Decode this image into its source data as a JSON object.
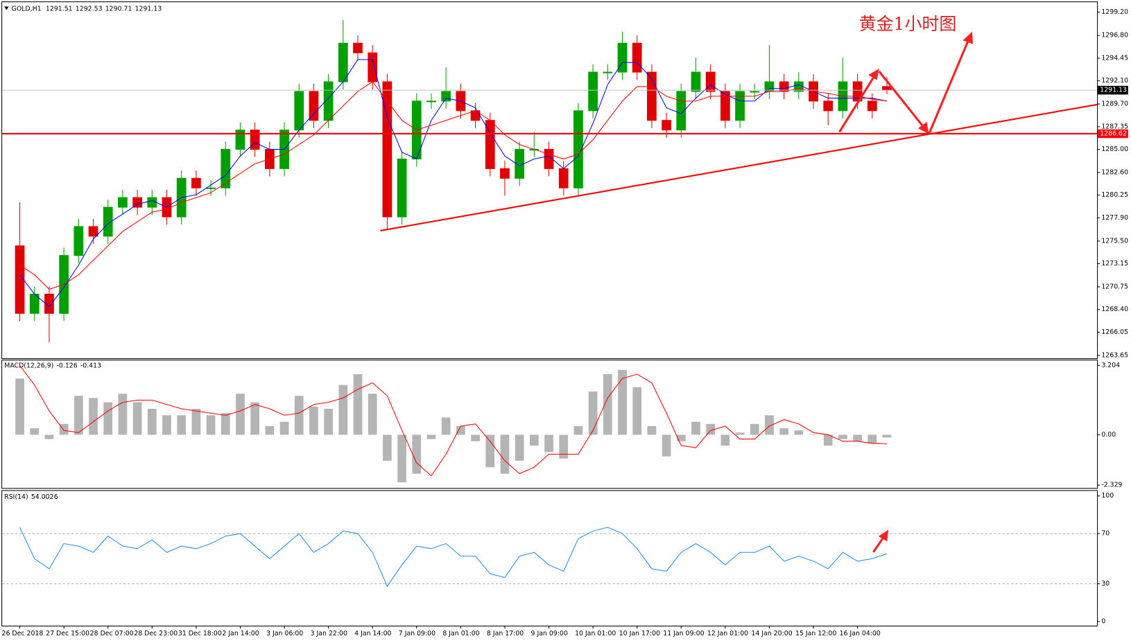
{
  "chart_data": [
    {
      "type": "candlestick",
      "title": "黄金1小时图",
      "symbol": "GOLD,H1",
      "up_color": "#00a000",
      "down_color": "#e00000",
      "open": [
        1275,
        1268,
        1270,
        1268,
        1274,
        1277,
        1276,
        1279,
        1280,
        1279,
        1280,
        1278,
        1282,
        1281,
        1281,
        1285,
        1287,
        1285,
        1283,
        1287,
        1291,
        1288,
        1292,
        1296,
        1295,
        1292,
        1278,
        1284,
        1290,
        1290,
        1291,
        1289,
        1288,
        1283,
        1282,
        1285,
        1285,
        1283,
        1281,
        1289,
        1293,
        1293,
        1296,
        1293,
        1288,
        1287,
        1291,
        1293,
        1291,
        1288,
        1291,
        1291,
        1292,
        1291,
        1292,
        1290,
        1289,
        1292,
        1290,
        1291.51
      ],
      "high": [
        1279.5,
        1270.8,
        1270.8,
        1274.8,
        1277.8,
        1277.8,
        1279.8,
        1280.8,
        1280.8,
        1280.8,
        1280.8,
        1282.8,
        1282.8,
        1281.8,
        1285.8,
        1287.8,
        1287.8,
        1285.8,
        1287.8,
        1291.8,
        1291.8,
        1292.8,
        1298.4,
        1296.8,
        1295.8,
        1292.8,
        1284.8,
        1290.8,
        1290.8,
        1293.5,
        1291.8,
        1289.8,
        1288.8,
        1283.8,
        1285.8,
        1286.8,
        1285.8,
        1283.8,
        1289.8,
        1293.8,
        1293.8,
        1297.2,
        1296.8,
        1293.8,
        1288.8,
        1291.8,
        1294.5,
        1293.8,
        1291.8,
        1291.8,
        1291.8,
        1295.8,
        1292.8,
        1293,
        1292.8,
        1290.8,
        1294.5,
        1292.8,
        1290.8,
        1292.53
      ],
      "low": [
        1267.2,
        1267.2,
        1265,
        1267.2,
        1273.2,
        1275.2,
        1275.2,
        1278.2,
        1278.2,
        1278.2,
        1277.2,
        1277.2,
        1280.2,
        1280.2,
        1280.2,
        1284.2,
        1284.2,
        1282.2,
        1282.2,
        1286.2,
        1287.2,
        1287.2,
        1291.2,
        1294.2,
        1291.2,
        1276.6,
        1277.2,
        1283.2,
        1289.2,
        1289.2,
        1288.2,
        1287.2,
        1282.2,
        1280.2,
        1281.2,
        1284.2,
        1282.2,
        1280.2,
        1280.2,
        1288.2,
        1292.2,
        1292.2,
        1292.2,
        1287.2,
        1286.2,
        1286.2,
        1290.2,
        1290.2,
        1287.2,
        1287.2,
        1290.2,
        1290.2,
        1290.2,
        1290.2,
        1289.2,
        1287.5,
        1288.2,
        1289.2,
        1288.2,
        1290.71
      ],
      "close": [
        1268,
        1270,
        1268,
        1274,
        1277,
        1276,
        1279,
        1280,
        1279,
        1280,
        1278,
        1282,
        1281,
        1281,
        1285,
        1287,
        1285,
        1283,
        1287,
        1291,
        1288,
        1292,
        1296,
        1295,
        1292,
        1278,
        1284,
        1290,
        1290,
        1291,
        1289,
        1288,
        1283,
        1282,
        1285,
        1285,
        1283,
        1281,
        1289,
        1293,
        1293,
        1296,
        1293,
        1288,
        1287,
        1291,
        1293,
        1291,
        1288,
        1291,
        1291,
        1292,
        1291,
        1292,
        1290,
        1289,
        1292,
        1290,
        1289,
        1291.13
      ],
      "series": [
        {
          "color": "#0000ff",
          "values": [
            1272,
            1270,
            1268.7,
            1270.7,
            1273,
            1275.7,
            1277.3,
            1278.3,
            1279.3,
            1279.7,
            1279,
            1280,
            1280.3,
            1281.3,
            1282.3,
            1284.3,
            1285.7,
            1285,
            1285,
            1287,
            1288.7,
            1290.3,
            1292,
            1294.3,
            1294.3,
            1288.3,
            1284.7,
            1284,
            1288,
            1290.3,
            1290,
            1289.3,
            1286.7,
            1284.3,
            1283.3,
            1284,
            1284.3,
            1283,
            1284.3,
            1287.7,
            1291.7,
            1294,
            1294,
            1292.3,
            1289.3,
            1288.7,
            1290.3,
            1291.7,
            1290.7,
            1290,
            1290,
            1291.3,
            1291.3,
            1291.7,
            1291,
            1290.3,
            1290.3,
            1290.3,
            1290.3,
            1290
          ]
        },
        {
          "color": "#ff0000",
          "values": [
            1273,
            1272,
            1270.5,
            1271,
            1272,
            1273.5,
            1275,
            1276.5,
            1277.5,
            1278.5,
            1278.8,
            1279.5,
            1280,
            1280.5,
            1281.5,
            1282.5,
            1283.5,
            1284,
            1284.5,
            1285.5,
            1286.5,
            1288,
            1289.5,
            1291,
            1292,
            1290,
            1288,
            1287,
            1287.5,
            1288,
            1288.5,
            1289,
            1288,
            1286.5,
            1285.5,
            1285,
            1284.5,
            1284,
            1284.5,
            1286,
            1288,
            1290,
            1291.5,
            1291.5,
            1290.5,
            1290,
            1290,
            1290.5,
            1290.5,
            1290.5,
            1290.5,
            1291,
            1291,
            1291.3,
            1291,
            1290.8,
            1290.5,
            1290.5,
            1290.2,
            1290
          ]
        }
      ],
      "hline": {
        "value": 1286.62,
        "color": "#ff0000"
      },
      "xlim": [
        -1.2,
        73.3
      ],
      "xticks": [
        {
          "value": 0,
          "label": "26 Dec 2018"
        },
        {
          "value": 3,
          "label": "27 Dec 15:00"
        },
        {
          "value": 6,
          "label": "28 Dec 07:00"
        },
        {
          "value": 9,
          "label": "28 Dec 23:00"
        },
        {
          "value": 12,
          "label": "31 Dec 18:00"
        },
        {
          "value": 15,
          "label": "2 Jan 14:00"
        },
        {
          "value": 18,
          "label": "3 Jan 06:00"
        },
        {
          "value": 21,
          "label": "3 Jan 22:00"
        },
        {
          "value": 24,
          "label": "4 Jan 14:00"
        },
        {
          "value": 27,
          "label": "7 Jan 09:00"
        },
        {
          "value": 30,
          "label": "8 Jan 01:00"
        },
        {
          "value": 33,
          "label": "8 Jan 17:00"
        },
        {
          "value": 36,
          "label": "9 Jan 09:00"
        },
        {
          "value": 39,
          "label": "10 Jan 01:00"
        },
        {
          "value": 42,
          "label": "10 Jan 17:00"
        },
        {
          "value": 45,
          "label": "11 Jan 09:00"
        },
        {
          "value": 48,
          "label": "12 Jan 01:00"
        },
        {
          "value": 51,
          "label": "14 Jan 20:00"
        },
        {
          "value": 54,
          "label": "15 Jan 12:00"
        },
        {
          "value": 57,
          "label": "16 Jan 04:00"
        }
      ],
      "ylim": [
        1263.35,
        1300.25
      ],
      "yticks": [
        {
          "value": 1299.2,
          "label": "1299.20"
        },
        {
          "value": 1296.8,
          "label": "1296.80"
        },
        {
          "value": 1294.45,
          "label": "1294.45"
        },
        {
          "value": 1292.1,
          "label": "1292.10"
        },
        {
          "value": 1289.7,
          "label": "1289.70"
        },
        {
          "value": 1287.35,
          "label": "1287.35"
        },
        {
          "value": 1285,
          "label": "1285.00"
        },
        {
          "value": 1282.6,
          "label": "1282.60"
        },
        {
          "value": 1280.25,
          "label": "1280.25"
        },
        {
          "value": 1277.9,
          "label": "1277.90"
        },
        {
          "value": 1275.5,
          "label": "1275.50"
        },
        {
          "value": 1273.15,
          "label": "1273.15"
        },
        {
          "value": 1270.75,
          "label": "1270.75"
        },
        {
          "value": 1268.4,
          "label": "1268.40"
        },
        {
          "value": 1266.05,
          "label": "1266.05"
        },
        {
          "value": 1263.65,
          "label": "1263.65"
        }
      ]
    },
    {
      "type": "macd",
      "title": "MACD(12,26,9)",
      "series": [
        {
          "style": "histogram",
          "color": "#b4b4b4",
          "values": [
            2.6,
            0.3,
            -0.2,
            0.5,
            1.8,
            1.7,
            1.5,
            1.9,
            1.5,
            1.2,
            0.9,
            0.9,
            1.2,
            0.9,
            1,
            1.9,
            1.5,
            0.4,
            0.6,
            1.8,
            1.3,
            1.2,
            2.3,
            2.8,
            1.9,
            -1.2,
            -2.2,
            -1.8,
            -0.2,
            0.8,
            0.4,
            -0.3,
            -1.5,
            -1.8,
            -1.2,
            -0.5,
            -0.8,
            -1.1,
            0.4,
            2,
            2.8,
            3,
            2.2,
            0.4,
            -1,
            -0.3,
            0.6,
            0.5,
            -0.5,
            0.1,
            0.5,
            0.9,
            0.3,
            0.2,
            0,
            -0.5,
            -0.2,
            -0.3,
            -0.4,
            -0.126
          ]
        },
        {
          "style": "line",
          "color": "#ff0000",
          "values": [
            3.2,
            2.3,
            1.1,
            0.2,
            0.1,
            0.6,
            1.1,
            1.5,
            1.6,
            1.6,
            1.4,
            1.2,
            1.1,
            1,
            0.9,
            1.1,
            1.4,
            1.2,
            0.9,
            1,
            1.4,
            1.5,
            1.7,
            2.1,
            2.4,
            1.8,
            0.2,
            -1.3,
            -1.9,
            -0.9,
            0.4,
            0.5,
            -0.3,
            -1.2,
            -1.8,
            -1.5,
            -0.9,
            -0.9,
            -0.9,
            0.2,
            1.7,
            2.6,
            2.8,
            2.4,
            1,
            -0.5,
            -0.6,
            0.2,
            0.4,
            -0.2,
            -0.2,
            0.4,
            0.7,
            0.5,
            0.1,
            0,
            -0.3,
            -0.3,
            -0.4,
            -0.413
          ]
        }
      ],
      "ylim": [
        -2.462,
        3.437
      ],
      "yticks": [
        3.204,
        {
          "value": 0,
          "label": "0.00"
        },
        -2.329
      ]
    },
    {
      "type": "line",
      "title": "RSI(14)",
      "series": [
        {
          "color": "#1e90ff",
          "values": [
            75,
            50,
            42,
            62,
            60,
            55,
            68,
            60,
            58,
            65,
            55,
            60,
            58,
            62,
            68,
            70,
            60,
            50,
            60,
            70,
            55,
            62,
            72,
            70,
            55,
            28,
            45,
            60,
            58,
            62,
            52,
            52,
            38,
            35,
            52,
            55,
            45,
            40,
            66,
            72,
            75,
            70,
            58,
            42,
            40,
            55,
            62,
            55,
            45,
            55,
            55,
            60,
            48,
            52,
            48,
            42,
            55,
            48,
            50,
            54.0026
          ]
        }
      ],
      "ylim": [
        -3.4,
        104
      ],
      "yticks": [
        100,
        70,
        30,
        0
      ]
    }
  ]
}
